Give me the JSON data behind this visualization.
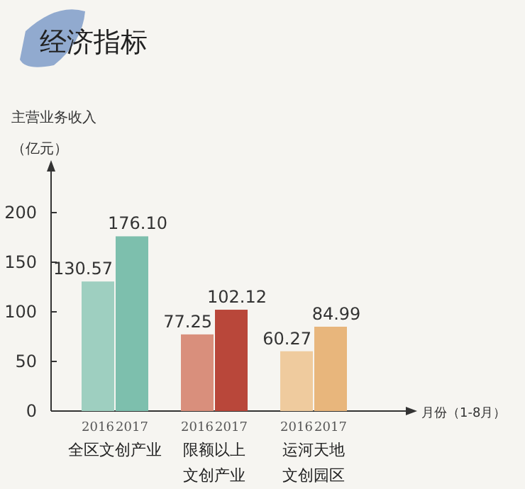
{
  "chart_data": {
    "type": "bar",
    "title": "经济指标",
    "ylabel": "主营业务收入（亿元）",
    "xlabel": "月份（1-8月）",
    "categories": [
      "2016",
      "2017",
      "2016",
      "2017",
      "2016",
      "2017"
    ],
    "values": [
      130.57,
      176.1,
      77.25,
      102.12,
      60.27,
      84.99
    ],
    "colors": [
      "#9ecfc0",
      "#7dbfad",
      "#d98f7c",
      "#b9473a",
      "#efcb9e",
      "#e8b67c"
    ],
    "value_labels": [
      "130.57",
      "176.10",
      "77.25",
      "102.12",
      "60.27",
      "84.99"
    ],
    "ylim": [
      0,
      250
    ],
    "yticks": [
      0,
      50,
      100,
      150,
      200
    ],
    "annotations": [
      "全区文创产业",
      "限额以上文创产业",
      "运河天地文创园区"
    ]
  }
}
